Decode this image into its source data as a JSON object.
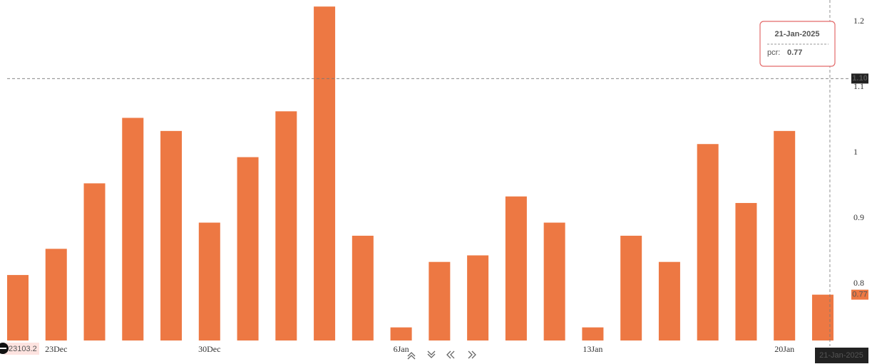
{
  "chart_data": {
    "type": "bar",
    "categories": [
      null,
      "23Dec",
      null,
      null,
      null,
      "30Dec",
      null,
      null,
      null,
      null,
      "6Jan",
      null,
      null,
      null,
      null,
      "13Jan",
      null,
      null,
      null,
      null,
      "20Jan",
      null
    ],
    "values": [
      0.8,
      0.84,
      0.94,
      1.04,
      1.02,
      0.88,
      0.98,
      1.05,
      1.21,
      0.86,
      0.72,
      0.82,
      0.83,
      0.92,
      0.88,
      0.72,
      0.86,
      0.82,
      1.0,
      0.91,
      1.02,
      0.77
    ],
    "color": "#ed7843",
    "ylim": [
      0.7,
      1.22
    ],
    "yticks": [
      0.8,
      0.9,
      1,
      1.1,
      1.2
    ],
    "grid": false,
    "crosshair": {
      "y": {
        "value": 1.1,
        "label": "1.10"
      },
      "x_label": "21-Jan-2025"
    },
    "tooltip": {
      "date": "21-Jan-2025",
      "series_label": "pcr:"
    },
    "price_label": 23103.2
  }
}
